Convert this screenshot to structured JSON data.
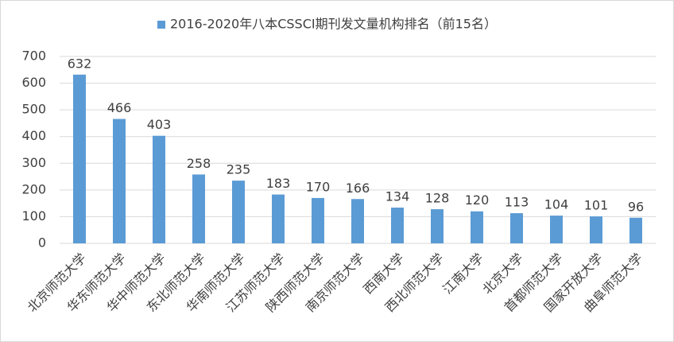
{
  "chart_data": {
    "type": "bar",
    "categories": [
      "北京师范大学",
      "华东师范大学",
      "华中师范大学",
      "东北师范大学",
      "华南师范大学",
      "江苏师范大学",
      "陕西师范大学",
      "南京师范大学",
      "西南大学",
      "西北师范大学",
      "江南大学",
      "北京大学",
      "首都师范大学",
      "国家开放大学",
      "曲阜师范大学"
    ],
    "series": [
      {
        "name": "2016-2020年八本CSSCI期刊发文量机构排名（前15名）",
        "color": "#5b9bd5",
        "values": [
          632,
          466,
          403,
          258,
          235,
          183,
          170,
          166,
          134,
          128,
          120,
          113,
          104,
          101,
          96
        ]
      }
    ],
    "ylim": [
      0,
      700
    ],
    "yticks": [
      0,
      100,
      200,
      300,
      400,
      500,
      600,
      700
    ],
    "grid": true,
    "legend": "top"
  }
}
